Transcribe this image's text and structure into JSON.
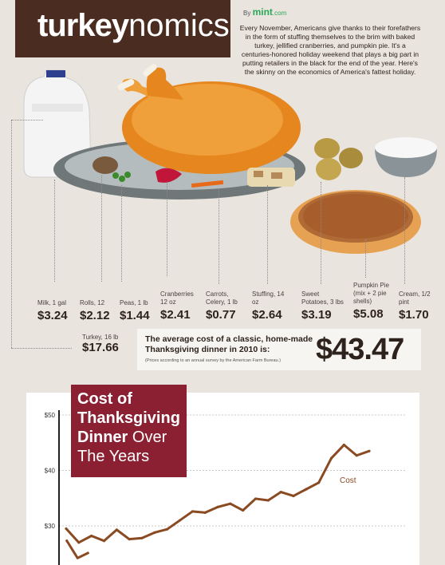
{
  "header": {
    "title_bold": "turkey",
    "title_light": "nomics",
    "by_label": "By",
    "brand": "mint",
    "brand_suffix": ".com",
    "intro": "Every November, Americans give thanks to their forefathers in the form of stuffing themselves to the brim with baked turkey, jellified cranberries, and pumpkin pie. It's a centuries-honored holiday weekend that plays a big part in putting retailers in the black for the end of the year. Here's the skinny on the economics of America's fattest holiday."
  },
  "items": [
    {
      "label": "Milk, 1 gal",
      "price": "$3.24"
    },
    {
      "label": "Rolls, 12",
      "price": "$2.12"
    },
    {
      "label": "Peas, 1 lb",
      "price": "$1.44"
    },
    {
      "label": "Cranberries 12 oz",
      "price": "$2.41"
    },
    {
      "label": "Carrots, Celery, 1 lb",
      "price": "$0.77"
    },
    {
      "label": "Stuffing, 14 oz",
      "price": "$2.64"
    },
    {
      "label": "Sweet Potatoes, 3 lbs",
      "price": "$3.19"
    },
    {
      "label": "Pumpkin Pie (mix + 2 pie shells)",
      "price": "$5.08"
    },
    {
      "label": "Cream, 1/2 pint",
      "price": "$1.70"
    }
  ],
  "turkey": {
    "label": "Turkey, 16 lb",
    "price": "$17.66"
  },
  "total": {
    "text": "The average cost of a classic, home-made Thanksgiving dinner in 2010 is:",
    "note": "(Prices according to an annual survey by the American Farm Bureau.)",
    "amount": "$43.47"
  },
  "chart_title": {
    "bold": "Cost of Thanksgiving Dinner",
    "light": "Over The Years"
  },
  "chart_data": {
    "type": "line",
    "title": "Cost of Thanksgiving Dinner Over The Years",
    "ylabel": "",
    "xlabel": "",
    "ylim": [
      25,
      50
    ],
    "yticks": [
      "$50",
      "$40",
      "$30"
    ],
    "grid": true,
    "series": [
      {
        "name": "Cost",
        "values": [
          29.5,
          27.0,
          28.2,
          27.3,
          29.3,
          27.6,
          27.8,
          28.8,
          29.4,
          31.0,
          32.6,
          32.4,
          33.4,
          34.0,
          32.8,
          34.9,
          34.6,
          36.1,
          35.4,
          36.6,
          37.8,
          42.2,
          44.6,
          42.7,
          43.5
        ]
      },
      {
        "name": "",
        "values": [
          27.5,
          24.2,
          25.2
        ]
      }
    ],
    "series_colors": [
      "#8a4a22",
      "#8a4a22"
    ]
  }
}
